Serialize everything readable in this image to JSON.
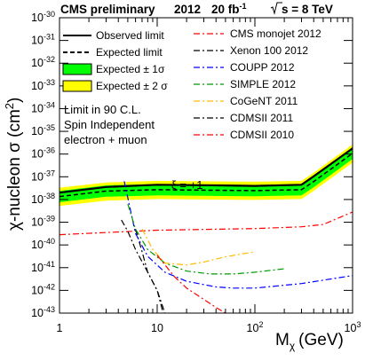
{
  "header": {
    "experiment": "CMS preliminary",
    "year": "2012",
    "lumi_value": "20 fb",
    "lumi_exp": "-1",
    "energy": "s = 8 TeV"
  },
  "chart_data": {
    "type": "line",
    "xlabel_main": "M",
    "xlabel_sub": "χ",
    "xlabel_unit": "(GeV)",
    "ylabel": "χ-nucleon σ (cm",
    "ylabel_exp": "2",
    "ylabel_close": ")",
    "xscale": "log",
    "yscale": "log",
    "xlim": [
      1,
      1000
    ],
    "ylim": [
      1e-43,
      1e-30
    ],
    "x_ticks": [
      {
        "value": 1,
        "base": "1",
        "exp": ""
      },
      {
        "value": 10,
        "base": "10",
        "exp": ""
      },
      {
        "value": 100,
        "base": "10",
        "exp": "2"
      },
      {
        "value": 1000,
        "base": "10",
        "exp": "3"
      }
    ],
    "y_ticks": [
      {
        "value": -30,
        "base": "10",
        "exp": "-30"
      },
      {
        "value": -31,
        "base": "10",
        "exp": "-31"
      },
      {
        "value": -32,
        "base": "10",
        "exp": "-32"
      },
      {
        "value": -33,
        "base": "10",
        "exp": "-33"
      },
      {
        "value": -34,
        "base": "10",
        "exp": "-34"
      },
      {
        "value": -35,
        "base": "10",
        "exp": "-35"
      },
      {
        "value": -36,
        "base": "10",
        "exp": "-36"
      },
      {
        "value": -37,
        "base": "10",
        "exp": "-37"
      },
      {
        "value": -38,
        "base": "10",
        "exp": "-38"
      },
      {
        "value": -39,
        "base": "10",
        "exp": "-39"
      },
      {
        "value": -40,
        "base": "10",
        "exp": "-40"
      },
      {
        "value": -41,
        "base": "10",
        "exp": "-41"
      },
      {
        "value": -42,
        "base": "10",
        "exp": "-42"
      },
      {
        "value": -43,
        "base": "10",
        "exp": "-43"
      }
    ],
    "annotation_lines": [
      "Limit in 90 C.L.",
      "Spin Independent",
      "electron + muon"
    ],
    "xi_label": "ξ = +1",
    "legend_left": [
      {
        "label": "Observed limit",
        "kind": "line",
        "color": "#000000",
        "dash": "solid"
      },
      {
        "label": "Expected limit",
        "kind": "line",
        "color": "#000000",
        "dash": "dashed"
      },
      {
        "label": "Expected ± 1σ",
        "kind": "box",
        "color": "#00ff00"
      },
      {
        "label": "Expected ± 2 σ",
        "kind": "box",
        "color": "#ffff00"
      }
    ],
    "legend_right": [
      {
        "label": "CMS monojet 2012",
        "color": "#ff0000",
        "dash": "dashdot"
      },
      {
        "label": "Xenon 100 2012",
        "color": "#000000",
        "dash": "dashdot"
      },
      {
        "label": "COUPP 2012",
        "color": "#0000ff",
        "dash": "dashdot"
      },
      {
        "label": "SIMPLE 2012",
        "color": "#009900",
        "dash": "dashdot"
      },
      {
        "label": "CoGeNT 2011",
        "color": "#ffbb00",
        "dash": "dashdot"
      },
      {
        "label": "CDMSII 2011",
        "color": "#000000",
        "dash": "dashdot"
      },
      {
        "label": "CDMSII 2010",
        "color": "#ff0000",
        "dash": "dashdot"
      }
    ],
    "series": [
      {
        "name": "Expected ± 2 σ",
        "kind": "band",
        "color": "#ffff00",
        "x": [
          1,
          3,
          10,
          30,
          100,
          300,
          400,
          1000
        ],
        "lower": [
          -38.28,
          -38.05,
          -37.98,
          -38.0,
          -38.02,
          -37.98,
          -37.62,
          -36.38
        ],
        "upper": [
          -37.48,
          -37.25,
          -37.18,
          -37.2,
          -37.22,
          -37.18,
          -36.82,
          -35.58
        ]
      },
      {
        "name": "Expected ± 1σ",
        "kind": "band",
        "color": "#00ff00",
        "x": [
          1,
          3,
          10,
          30,
          100,
          300,
          400,
          1000
        ],
        "lower": [
          -38.12,
          -37.88,
          -37.82,
          -37.84,
          -37.86,
          -37.82,
          -37.46,
          -36.22
        ],
        "upper": [
          -37.62,
          -37.38,
          -37.32,
          -37.34,
          -37.36,
          -37.32,
          -36.96,
          -35.72
        ]
      },
      {
        "name": "Expected limit",
        "kind": "line",
        "color": "#000000",
        "dash": "dashed",
        "width": 1.5,
        "x": [
          1,
          3,
          10,
          30,
          100,
          300,
          400,
          1000
        ],
        "y": [
          -37.87,
          -37.63,
          -37.57,
          -37.59,
          -37.61,
          -37.57,
          -37.21,
          -35.97
        ]
      },
      {
        "name": "Observed limit",
        "kind": "line",
        "color": "#000000",
        "dash": "solid",
        "width": 2.2,
        "x": [
          1,
          3,
          10,
          30,
          100,
          300,
          400,
          1000
        ],
        "y": [
          -37.7,
          -37.45,
          -37.35,
          -37.37,
          -37.4,
          -37.35,
          -36.98,
          -35.75
        ]
      },
      {
        "name": "CMS monojet 2012",
        "kind": "line",
        "color": "#ff0000",
        "dash": "dashdot",
        "width": 1.2,
        "x": [
          1,
          10,
          100,
          300,
          500,
          1000
        ],
        "y": [
          -39.55,
          -39.35,
          -39.28,
          -39.2,
          -39.1,
          -38.55
        ]
      },
      {
        "name": "Xenon 100 2012",
        "kind": "line",
        "color": "#000000",
        "dash": "dashdot",
        "width": 1.2,
        "x": [
          6,
          7,
          8,
          10,
          12
        ],
        "y": [
          -39.3,
          -40.3,
          -41.2,
          -42.0,
          -43.0
        ]
      },
      {
        "name": "COUPP 2012",
        "kind": "line",
        "color": "#0000ff",
        "dash": "dashdot",
        "width": 1.2,
        "x": [
          4.6,
          6,
          8,
          12,
          20,
          40,
          60,
          100,
          300,
          1000
        ],
        "y": [
          -37.2,
          -39.5,
          -40.5,
          -41.2,
          -41.6,
          -41.85,
          -41.9,
          -41.9,
          -41.7,
          -41.35
        ]
      },
      {
        "name": "SIMPLE 2012",
        "kind": "line",
        "color": "#009900",
        "dash": "dashdot",
        "width": 1.2,
        "x": [
          5,
          6,
          8,
          12,
          20,
          35,
          60,
          100,
          200
        ],
        "y": [
          -38.2,
          -39.3,
          -40.2,
          -40.8,
          -41.15,
          -41.28,
          -41.28,
          -41.2,
          -41.05
        ]
      },
      {
        "name": "CoGeNT 2011",
        "kind": "line",
        "color": "#ffbb00",
        "dash": "dashdot",
        "width": 1.2,
        "x": [
          7,
          9,
          12,
          20,
          30,
          50,
          100
        ],
        "y": [
          -39.3,
          -40.2,
          -40.8,
          -40.88,
          -40.75,
          -40.52,
          -40.3
        ]
      },
      {
        "name": "CDMSII 2011",
        "kind": "line",
        "color": "#000000",
        "dash": "dashdot",
        "width": 1.2,
        "x": [
          4.3,
          5,
          6,
          8,
          10,
          11.5
        ],
        "y": [
          -38.9,
          -39.4,
          -40.2,
          -41.2,
          -42.0,
          -43.0
        ]
      },
      {
        "name": "CDMSII 2010",
        "kind": "line",
        "color": "#ff0000",
        "dash": "dashdot",
        "width": 1.2,
        "x": [
          10,
          15,
          20,
          30,
          40,
          50
        ],
        "y": [
          -40.45,
          -41.4,
          -41.9,
          -42.4,
          -42.75,
          -43.0
        ]
      }
    ]
  }
}
